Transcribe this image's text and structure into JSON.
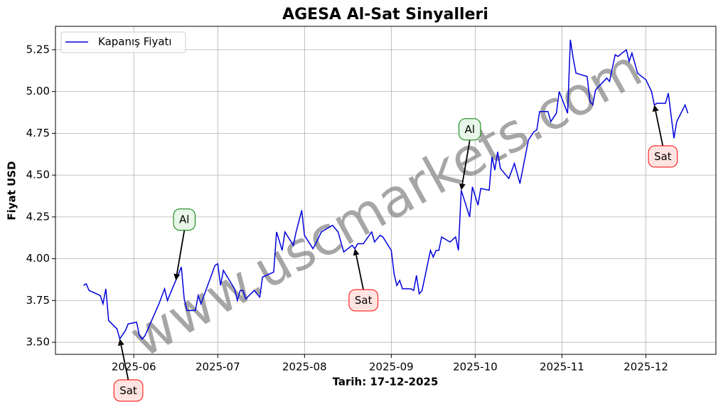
{
  "chart_data": {
    "type": "line",
    "title": "AGESA Al-Sat Sinyalleri",
    "xlabel": "Tarih: 17-12-2025",
    "ylabel": "Fiyat USD",
    "watermark": "www.uscmarkets.com",
    "legend": "upper left",
    "grid": true,
    "xlim": [
      "2025-05-04",
      "2025-12-26"
    ],
    "ylim": [
      3.428,
      5.39
    ],
    "xticks": [
      {
        "value": "2025-06-01",
        "label": "2025-06"
      },
      {
        "value": "2025-07-01",
        "label": "2025-07"
      },
      {
        "value": "2025-08-01",
        "label": "2025-08"
      },
      {
        "value": "2025-09-01",
        "label": "2025-09"
      },
      {
        "value": "2025-10-01",
        "label": "2025-10"
      },
      {
        "value": "2025-11-01",
        "label": "2025-11"
      },
      {
        "value": "2025-12-01",
        "label": "2025-12"
      }
    ],
    "yticks": [
      {
        "value": 3.5,
        "label": "3.50"
      },
      {
        "value": 3.75,
        "label": "3.75"
      },
      {
        "value": 4.0,
        "label": "4.00"
      },
      {
        "value": 4.25,
        "label": "4.25"
      },
      {
        "value": 4.5,
        "label": "4.50"
      },
      {
        "value": 4.75,
        "label": "4.75"
      },
      {
        "value": 5.0,
        "label": "5.00"
      },
      {
        "value": 5.25,
        "label": "5.25"
      }
    ],
    "x": [
      "2025-05-14",
      "2025-05-15",
      "2025-05-16",
      "2025-05-20",
      "2025-05-21",
      "2025-05-22",
      "2025-05-23",
      "2025-05-26",
      "2025-05-27",
      "2025-05-29",
      "2025-05-30",
      "2025-06-02",
      "2025-06-03",
      "2025-06-04",
      "2025-06-05",
      "2025-06-10",
      "2025-06-12",
      "2025-06-13",
      "2025-06-16",
      "2025-06-18",
      "2025-06-19",
      "2025-06-20",
      "2025-06-23",
      "2025-06-24",
      "2025-06-25",
      "2025-06-30",
      "2025-07-01",
      "2025-07-02",
      "2025-07-03",
      "2025-07-07",
      "2025-07-08",
      "2025-07-09",
      "2025-07-10",
      "2025-07-11",
      "2025-07-14",
      "2025-07-16",
      "2025-07-17",
      "2025-07-21",
      "2025-07-22",
      "2025-07-24",
      "2025-07-25",
      "2025-07-28",
      "2025-07-29",
      "2025-07-31",
      "2025-08-01",
      "2025-08-04",
      "2025-08-05",
      "2025-08-07",
      "2025-08-11",
      "2025-08-13",
      "2025-08-15",
      "2025-08-18",
      "2025-08-19",
      "2025-08-20",
      "2025-08-22",
      "2025-08-25",
      "2025-08-26",
      "2025-08-28",
      "2025-08-29",
      "2025-09-01",
      "2025-09-02",
      "2025-09-03",
      "2025-09-04",
      "2025-09-05",
      "2025-09-08",
      "2025-09-09",
      "2025-09-10",
      "2025-09-11",
      "2025-09-12",
      "2025-09-15",
      "2025-09-16",
      "2025-09-17",
      "2025-09-18",
      "2025-09-19",
      "2025-09-22",
      "2025-09-24",
      "2025-09-25",
      "2025-09-26",
      "2025-09-29",
      "2025-09-30",
      "2025-10-02",
      "2025-10-03",
      "2025-10-06",
      "2025-10-07",
      "2025-10-08",
      "2025-10-09",
      "2025-10-10",
      "2025-10-13",
      "2025-10-15",
      "2025-10-17",
      "2025-10-20",
      "2025-10-22",
      "2025-10-23",
      "2025-10-24",
      "2025-10-27",
      "2025-10-28",
      "2025-10-30",
      "2025-10-31",
      "2025-11-03",
      "2025-11-04",
      "2025-11-05",
      "2025-11-06",
      "2025-11-10",
      "2025-11-11",
      "2025-11-12",
      "2025-11-13",
      "2025-11-17",
      "2025-11-18",
      "2025-11-20",
      "2025-11-21",
      "2025-11-24",
      "2025-11-25",
      "2025-11-26",
      "2025-11-28",
      "2025-12-01",
      "2025-12-03",
      "2025-12-04",
      "2025-12-05",
      "2025-12-08",
      "2025-12-09",
      "2025-12-11",
      "2025-12-12",
      "2025-12-15",
      "2025-12-16"
    ],
    "series": [
      {
        "name": "Kapanış Fiyatı",
        "color": "#0000dd",
        "values": [
          3.84,
          3.85,
          3.81,
          3.78,
          3.73,
          3.82,
          3.63,
          3.58,
          3.52,
          3.57,
          3.61,
          3.62,
          3.54,
          3.52,
          3.54,
          3.73,
          3.82,
          3.75,
          3.87,
          3.95,
          3.76,
          3.69,
          3.69,
          3.78,
          3.73,
          3.96,
          3.97,
          3.84,
          3.93,
          3.82,
          3.75,
          3.81,
          3.81,
          3.76,
          3.81,
          3.77,
          3.89,
          3.92,
          4.16,
          4.05,
          4.16,
          4.08,
          4.16,
          4.29,
          4.14,
          4.06,
          4.09,
          4.16,
          4.2,
          4.16,
          4.04,
          4.08,
          4.06,
          4.09,
          4.09,
          4.16,
          4.1,
          4.14,
          4.13,
          4.05,
          3.91,
          3.84,
          3.87,
          3.82,
          3.82,
          3.81,
          3.9,
          3.79,
          3.81,
          4.05,
          4.01,
          4.05,
          4.05,
          4.13,
          4.1,
          4.13,
          4.05,
          4.41,
          4.25,
          4.43,
          4.32,
          4.42,
          4.41,
          4.61,
          4.53,
          4.64,
          4.54,
          4.48,
          4.57,
          4.45,
          4.71,
          4.76,
          4.77,
          4.88,
          4.88,
          4.82,
          4.87,
          5.0,
          4.87,
          5.31,
          5.2,
          5.11,
          5.09,
          4.94,
          4.92,
          5.01,
          5.08,
          5.06,
          5.22,
          5.21,
          5.25,
          5.18,
          5.23,
          5.11,
          5.07,
          5.0,
          4.92,
          4.93,
          4.93,
          4.99,
          4.72,
          4.82,
          4.92,
          4.87
        ]
      }
    ],
    "annotations": [
      {
        "text": "Sat",
        "x": "2025-05-27",
        "y": 3.52,
        "color": "red"
      },
      {
        "text": "Al",
        "x": "2025-06-16",
        "y": 3.87,
        "color": "green"
      },
      {
        "text": "Sat",
        "x": "2025-08-19",
        "y": 4.06,
        "color": "red"
      },
      {
        "text": "Al",
        "x": "2025-09-26",
        "y": 4.41,
        "color": "green"
      },
      {
        "text": "Sat",
        "x": "2025-12-04",
        "y": 4.92,
        "color": "red"
      }
    ]
  }
}
